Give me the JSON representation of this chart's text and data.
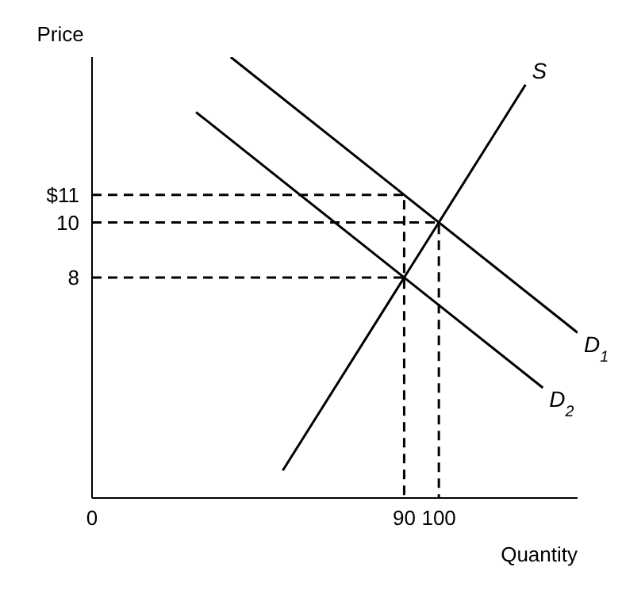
{
  "chart_data": {
    "type": "line",
    "xlabel": "Quantity",
    "ylabel": "Price",
    "xlim": [
      0,
      140
    ],
    "ylim": [
      0,
      16
    ],
    "xticks": [
      0,
      90,
      100
    ],
    "yticks": [
      {
        "value": 11,
        "label": "$11"
      },
      10,
      8
    ],
    "grid": false,
    "legend": false,
    "marker": "none",
    "series": [
      {
        "name": "S",
        "color": "#000000",
        "x": [
          55,
          125
        ],
        "values": [
          1,
          15
        ]
      },
      {
        "name": "D$_{1}$",
        "color": "#000000",
        "x": [
          40,
          140
        ],
        "values": [
          16,
          6
        ]
      },
      {
        "name": "D$_{2}$",
        "color": "#000000",
        "x": [
          30,
          130
        ],
        "values": [
          14,
          4
        ]
      },
      {
        "color": "#000000",
        "line_style": "dashed",
        "x": [
          0,
          90,
          90
        ],
        "values": [
          11,
          11,
          0
        ]
      },
      {
        "color": "#000000",
        "line_style": "dashed",
        "x": [
          0,
          100,
          100
        ],
        "values": [
          10,
          10,
          0
        ]
      },
      {
        "color": "#000000",
        "line_style": "dashed",
        "x": [
          0,
          90
        ],
        "values": [
          8,
          8
        ]
      }
    ]
  }
}
